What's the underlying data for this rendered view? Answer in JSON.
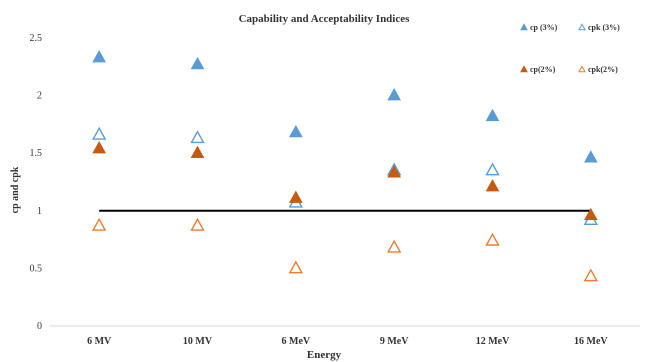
{
  "chart_data": {
    "type": "scatter",
    "title": "Capability and Acceptability Indices",
    "xlabel": "Energy",
    "ylabel": "cp and cpk",
    "categories": [
      "6 MV",
      "10 MV",
      "6 MeV",
      "9 MeV",
      "12 MeV",
      "16 MeV"
    ],
    "ylim": [
      0,
      2.5
    ],
    "yticks": [
      "0",
      "0.5",
      "1",
      "1.5",
      "2",
      "2.5"
    ],
    "grid": false,
    "legend_position": "top-right",
    "reference_line": {
      "y": 1.0,
      "color": "#000000"
    },
    "series": [
      {
        "name": "cp (3%)",
        "marker": "filled-triangle",
        "color": "#5b9bd5",
        "values": [
          2.34,
          2.28,
          1.69,
          2.01,
          1.83,
          1.47
        ]
      },
      {
        "name": "cpk (3%)",
        "marker": "open-triangle",
        "color": "#5b9bd5",
        "values": [
          1.67,
          1.64,
          1.08,
          1.36,
          1.36,
          0.93
        ]
      },
      {
        "name": "cp(2%)",
        "marker": "filled-triangle",
        "color": "#c55a11",
        "values": [
          1.55,
          1.51,
          1.12,
          1.34,
          1.22,
          0.97
        ]
      },
      {
        "name": "cpk(2%)",
        "marker": "open-triangle",
        "color": "#ed7d31",
        "values": [
          0.88,
          0.88,
          0.51,
          0.69,
          0.75,
          0.44
        ]
      }
    ]
  }
}
